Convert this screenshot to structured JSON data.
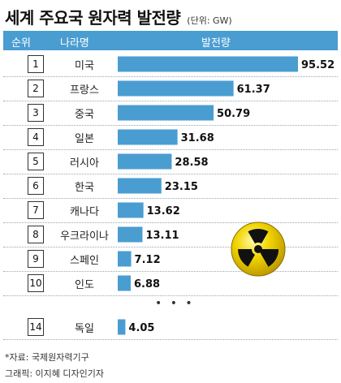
{
  "header": {
    "title": "세계 주요국 원자력 발전량",
    "unit": "(단위: GW)",
    "col_rank": "순위",
    "col_country": "나라명",
    "col_value": "발전량"
  },
  "rows": [
    {
      "rank": "1",
      "country": "미국",
      "value_label": "95.52"
    },
    {
      "rank": "2",
      "country": "프랑스",
      "value_label": "61.37"
    },
    {
      "rank": "3",
      "country": "중국",
      "value_label": "50.79"
    },
    {
      "rank": "4",
      "country": "일본",
      "value_label": "31.68"
    },
    {
      "rank": "5",
      "country": "러시아",
      "value_label": "28.58"
    },
    {
      "rank": "6",
      "country": "한국",
      "value_label": "23.15"
    },
    {
      "rank": "7",
      "country": "캐나다",
      "value_label": "13.62"
    },
    {
      "rank": "8",
      "country": "우크라이나",
      "value_label": "13.11"
    },
    {
      "rank": "9",
      "country": "스페인",
      "value_label": "7.12"
    },
    {
      "rank": "10",
      "country": "인도",
      "value_label": "6.88"
    },
    {
      "rank": "14",
      "country": "독일",
      "value_label": "4.05"
    }
  ],
  "ellipsis": "• • •",
  "footer": {
    "source": "*자료: 국제원자력기구",
    "credit": "그래픽: 이지혜 디자인기자"
  },
  "colors": {
    "header_bg": "#4a9dd1",
    "bar": "#4a9dd1",
    "radiation_yellow": "#f2d400"
  },
  "icons": [
    "radiation-icon"
  ],
  "chart_data": {
    "type": "bar",
    "orientation": "horizontal",
    "categories": [
      "미국",
      "프랑스",
      "중국",
      "일본",
      "러시아",
      "한국",
      "캐나다",
      "우크라이나",
      "스페인",
      "인도",
      "독일"
    ],
    "ranks": [
      1,
      2,
      3,
      4,
      5,
      6,
      7,
      8,
      9,
      10,
      14
    ],
    "values": [
      95.52,
      61.37,
      50.79,
      31.68,
      28.58,
      23.15,
      13.62,
      13.11,
      7.12,
      6.88,
      4.05
    ],
    "title": "세계 주요국 원자력 발전량",
    "unit": "GW",
    "grid": false
  }
}
